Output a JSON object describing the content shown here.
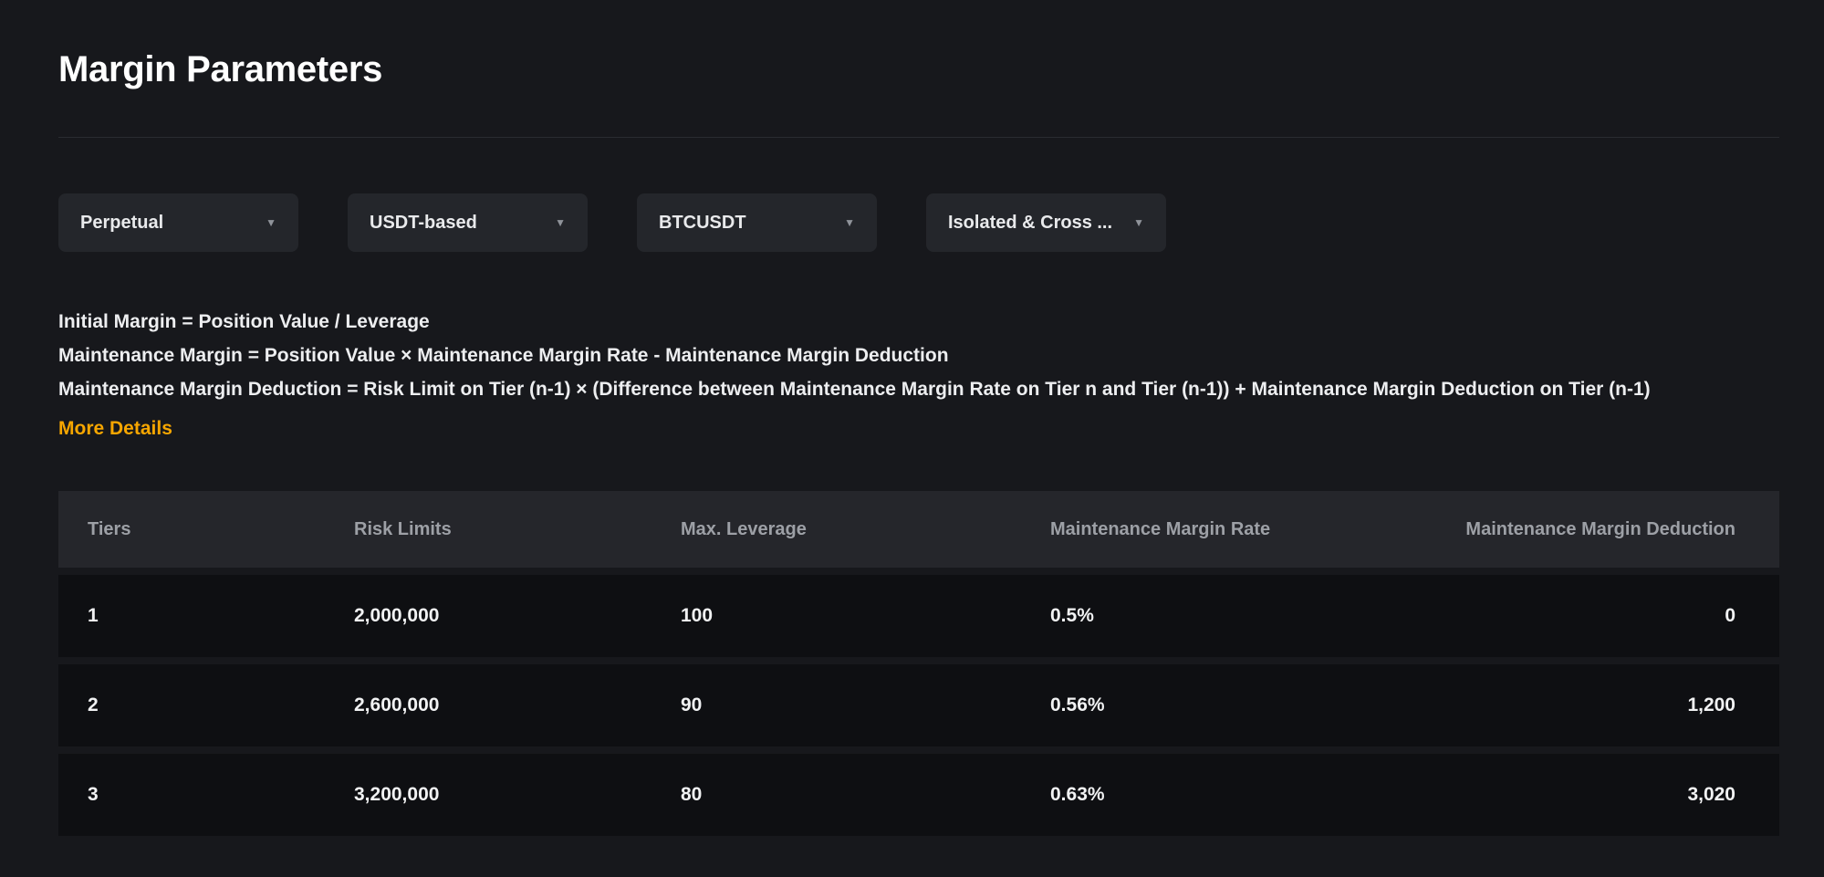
{
  "page": {
    "title": "Margin Parameters"
  },
  "filters": {
    "contract_type": {
      "label": "Perpetual"
    },
    "margin_coin": {
      "label": "USDT-based"
    },
    "symbol": {
      "label": "BTCUSDT"
    },
    "margin_mode": {
      "label": "Isolated & Cross ..."
    },
    "dropdown_icon": "▼"
  },
  "formulas": {
    "line1": "Initial Margin = Position Value / Leverage",
    "line2": "Maintenance Margin = Position Value × Maintenance Margin Rate - Maintenance Margin Deduction",
    "line3": "Maintenance Margin Deduction = Risk Limit on Tier (n-1) × (Difference between Maintenance Margin Rate on Tier n and Tier (n-1)) + Maintenance Margin Deduction on Tier (n-1)",
    "more_details_label": "More Details"
  },
  "table": {
    "headers": [
      "Tiers",
      "Risk Limits",
      "Max. Leverage",
      "Maintenance Margin Rate",
      "Maintenance Margin Deduction"
    ],
    "rows": [
      [
        "1",
        "2,000,000",
        "100",
        "0.5%",
        "0"
      ],
      [
        "2",
        "2,600,000",
        "90",
        "0.56%",
        "1,200"
      ],
      [
        "3",
        "3,200,000",
        "80",
        "0.63%",
        "3,020"
      ]
    ]
  },
  "colors": {
    "accent_orange": "#f7a600",
    "page_background": "#17181c",
    "panel_background": "#24262b",
    "table_header_background": "#25262b",
    "table_row_background": "#0e0f12",
    "header_text": "#9da0a6",
    "primary_text": "#ffffff"
  }
}
